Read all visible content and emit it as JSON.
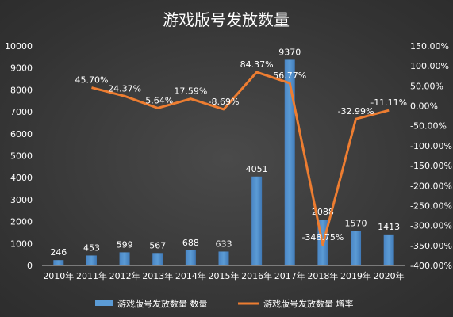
{
  "chart_data": {
    "type": "bar+line",
    "title": "游戏版号发放数量",
    "categories": [
      "2010年",
      "2011年",
      "2012年",
      "2013年",
      "2014年",
      "2015年",
      "2016年",
      "2017年",
      "2018年",
      "2019年",
      "2020年"
    ],
    "series": [
      {
        "name": "游戏版号发放数量 数量",
        "type": "bar",
        "axis": "left",
        "values": [
          246,
          453,
          599,
          567,
          688,
          633,
          4051,
          9370,
          2088,
          1570,
          1413
        ],
        "labels": [
          "246",
          "453",
          "599",
          "567",
          "688",
          "633",
          "4051",
          "9370",
          "2088",
          "1570",
          "1413"
        ]
      },
      {
        "name": "游戏版号发放数量 增率",
        "type": "line",
        "axis": "right",
        "values": [
          null,
          45.7,
          24.37,
          -5.64,
          17.59,
          -8.69,
          84.37,
          56.77,
          -348.75,
          -32.99,
          -11.11
        ],
        "labels": [
          "",
          "45.70%",
          "24.37%",
          "-5.64%",
          "17.59%",
          "-8.69%",
          "84.37%",
          "56.77%",
          "-348.75%",
          "-32.99%",
          "-11.11%"
        ]
      }
    ],
    "y_left": {
      "ylim": [
        0,
        10000
      ],
      "ticks": [
        0,
        1000,
        2000,
        3000,
        4000,
        5000,
        6000,
        7000,
        8000,
        9000,
        10000
      ],
      "tick_labels": [
        "0",
        "1000",
        "2000",
        "3000",
        "4000",
        "5000",
        "6000",
        "7000",
        "8000",
        "9000",
        "10000"
      ]
    },
    "y_right": {
      "ylim": [
        -400,
        150
      ],
      "ticks": [
        150,
        100,
        50,
        0,
        -50,
        -100,
        -150,
        -200,
        -250,
        -300,
        -350,
        -400
      ],
      "tick_labels": [
        "150.00%",
        "100.00%",
        "50.00%",
        "0.00%",
        "-50.00%",
        "-100.00%",
        "-150.00%",
        "-200.00%",
        "-250.00%",
        "-300.00%",
        "-350.00%",
        "-400.00%"
      ]
    },
    "grid": false,
    "legend": "bottom",
    "colors": {
      "bar": "#5b9bd5",
      "line": "#ed7d31",
      "text": "#ffffff"
    }
  }
}
